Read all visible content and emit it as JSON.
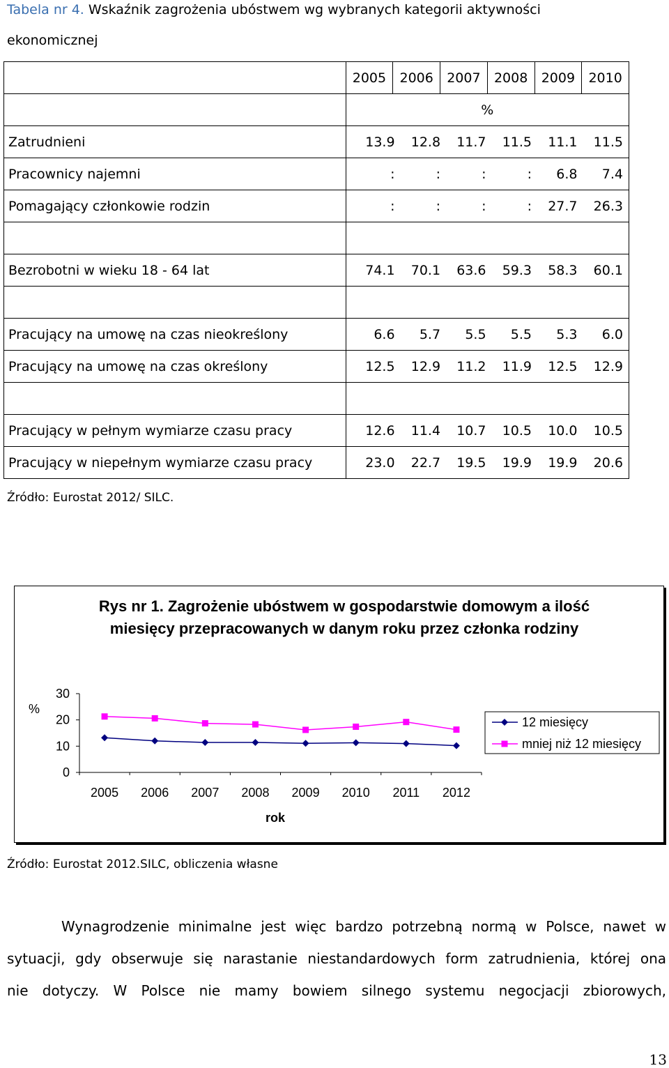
{
  "caption": {
    "label": "Tabela nr 4.",
    "title_line1": "Wskaźnik zagrożenia ubóstwem wg wybranych kategorii aktywności",
    "title_line2": "ekonomicznej"
  },
  "table": {
    "years": [
      "2005",
      "2006",
      "2007",
      "2008",
      "2009",
      "2010"
    ],
    "unit": "%",
    "rows": [
      {
        "label": "Zatrudnieni",
        "values": [
          "13.9",
          "12.8",
          "11.7",
          "11.5",
          "11.1",
          "11.5"
        ]
      },
      {
        "label": "Pracownicy najemni",
        "values": [
          ":",
          ":",
          ":",
          ":",
          "6.8",
          "7.4"
        ]
      },
      {
        "label": "Pomagający członkowie rodzin",
        "values": [
          ":",
          ":",
          ":",
          ":",
          "27.7",
          "26.3"
        ]
      },
      {
        "label": "",
        "values": []
      },
      {
        "label": "Bezrobotni w wieku 18 - 64 lat",
        "values": [
          "74.1",
          "70.1",
          "63.6",
          "59.3",
          "58.3",
          "60.1"
        ]
      },
      {
        "label": "",
        "values": []
      },
      {
        "label": "Pracujący na umowę na czas nieokreślony",
        "values": [
          "6.6",
          "5.7",
          "5.5",
          "5.5",
          "5.3",
          "6.0"
        ]
      },
      {
        "label": "Pracujący na umowę na czas określony",
        "values": [
          "12.5",
          "12.9",
          "11.2",
          "11.9",
          "12.5",
          "12.9"
        ]
      },
      {
        "label": "",
        "values": []
      },
      {
        "label": "Pracujący w pełnym wymiarze czasu pracy",
        "values": [
          "12.6",
          "11.4",
          "10.7",
          "10.5",
          "10.0",
          "10.5"
        ]
      },
      {
        "label": "Pracujący w niepełnym wymiarze czasu pracy",
        "values": [
          "23.0",
          "22.7",
          "19.5",
          "19.9",
          "19.9",
          "20.6"
        ]
      }
    ],
    "source": "Źródło: Eurostat 2012/ SILC."
  },
  "chart_data": {
    "type": "line",
    "title": "Rys nr 1. Zagrożenie ubóstwem w gospodarstwie domowym a ilość miesięcy przepracowanych w danym roku przez członka rodziny",
    "ylabel": "%",
    "xlabel": "rok",
    "ylim": [
      0,
      30
    ],
    "yticks": [
      "0",
      "10",
      "20",
      "30"
    ],
    "categories": [
      "2005",
      "2006",
      "2007",
      "2008",
      "2009",
      "2010",
      "2011",
      "2012"
    ],
    "legend_position": "right",
    "series": [
      {
        "name": "12 miesięcy",
        "color": "#000080",
        "marker": "diamond",
        "values": [
          13.2,
          12.0,
          11.4,
          11.4,
          11.1,
          11.3,
          11.0,
          10.2
        ]
      },
      {
        "name": "mniej niż 12 miesięcy",
        "color": "#ff00ff",
        "marker": "square",
        "values": [
          21.3,
          20.6,
          18.7,
          18.3,
          16.2,
          17.4,
          19.2,
          16.3
        ]
      }
    ]
  },
  "chart_source": "Źródło: Eurostat 2012.SILC, obliczenia własne",
  "body_text": {
    "line1": "Wynagrodzenie minimalne jest więc bardzo potrzebną normą w Polsce, nawet w",
    "line2": "sytuacji, gdy obserwuje się narastanie niestandardowych form zatrudnienia, której ona",
    "line3": "nie dotyczy. W Polsce nie mamy bowiem silnego systemu negocjacji zbiorowych,"
  },
  "page_number": "13"
}
